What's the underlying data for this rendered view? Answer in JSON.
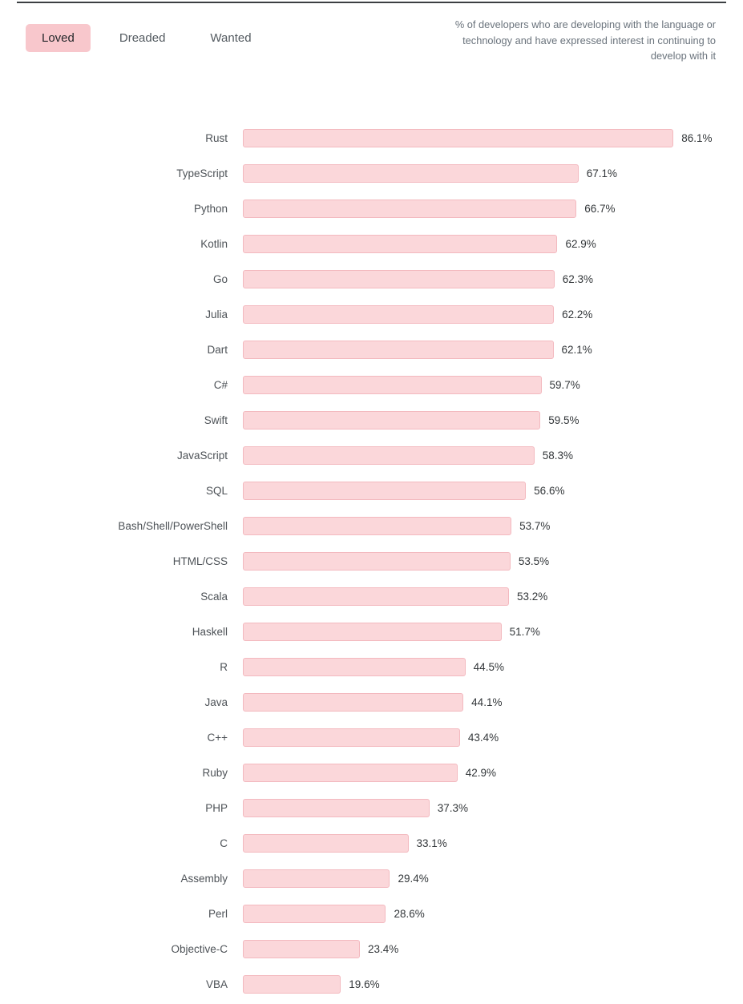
{
  "tabs": [
    {
      "label": "Loved",
      "active": true
    },
    {
      "label": "Dreaded",
      "active": false
    },
    {
      "label": "Wanted",
      "active": false
    }
  ],
  "description": "% of developers who are developing with the language or technology and have expressed interest in continuing to develop with it",
  "colors": {
    "bar_fill": "#fbd7da",
    "bar_border": "#f3b9bf",
    "active_tab_bg": "#f8c7cc",
    "tab_text": "#535a60",
    "description_text": "#6a737c"
  },
  "chart_data": {
    "type": "bar",
    "orientation": "horizontal",
    "title": "Loved",
    "value_suffix": "%",
    "xlim": [
      0,
      100
    ],
    "grid": false,
    "legend": "none",
    "categories": [
      "Rust",
      "TypeScript",
      "Python",
      "Kotlin",
      "Go",
      "Julia",
      "Dart",
      "C#",
      "Swift",
      "JavaScript",
      "SQL",
      "Bash/Shell/PowerShell",
      "HTML/CSS",
      "Scala",
      "Haskell",
      "R",
      "Java",
      "C++",
      "Ruby",
      "PHP",
      "C",
      "Assembly",
      "Perl",
      "Objective-C",
      "VBA"
    ],
    "values": [
      86.1,
      67.1,
      66.7,
      62.9,
      62.3,
      62.2,
      62.1,
      59.7,
      59.5,
      58.3,
      56.6,
      53.7,
      53.5,
      53.2,
      51.7,
      44.5,
      44.1,
      43.4,
      42.9,
      37.3,
      33.1,
      29.4,
      28.6,
      23.4,
      19.6
    ]
  }
}
